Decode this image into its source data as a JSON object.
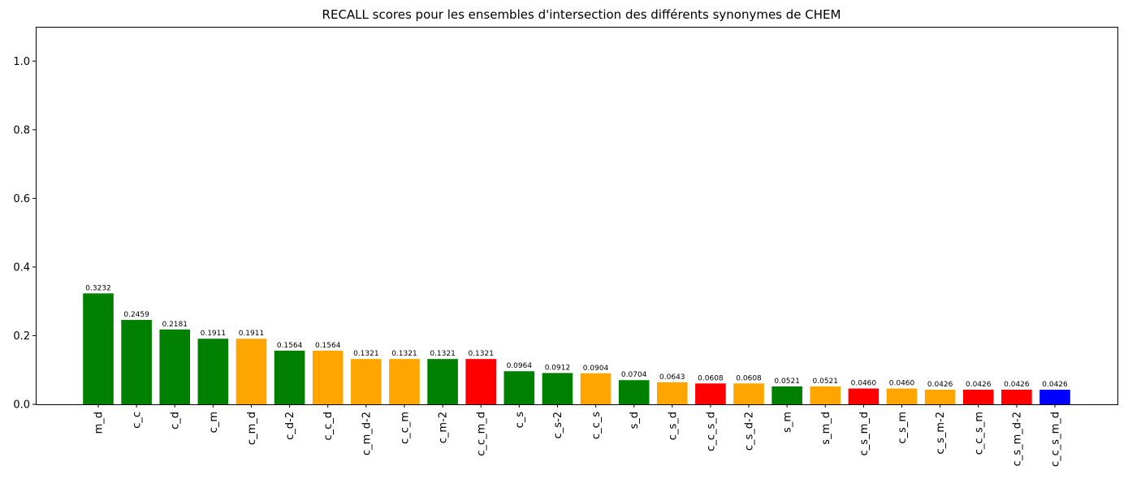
{
  "chart_data": {
    "type": "bar",
    "title": "RECALL scores pour les ensembles d'intersection des différents synonymes de CHEM",
    "xlabel": "",
    "ylabel": "",
    "ylim": [
      0,
      1.1
    ],
    "yticks": [
      "0.0",
      "0.2",
      "0.4",
      "0.6",
      "0.8",
      "1.0"
    ],
    "grid": false,
    "legend": "none",
    "categories": [
      "m_d",
      "c_c",
      "c_d",
      "c_m",
      "c_m_d",
      "c_d-2",
      "c_c_d",
      "c_m_d-2",
      "c_c_m",
      "c_m-2",
      "c_c_m_d",
      "c_s",
      "c_s-2",
      "c_c_s",
      "s_d",
      "c_s_d",
      "c_c_s_d",
      "c_s_d-2",
      "s_m",
      "s_m_d",
      "c_s_m_d",
      "c_s_m",
      "c_s_m-2",
      "c_c_s_m",
      "c_s_m_d-2",
      "c_c_s_m_d"
    ],
    "values": [
      0.3232,
      0.2459,
      0.2181,
      0.1911,
      0.1911,
      0.1564,
      0.1564,
      0.1321,
      0.1321,
      0.1321,
      0.1321,
      0.0964,
      0.0912,
      0.0904,
      0.0704,
      0.0643,
      0.0608,
      0.0608,
      0.0521,
      0.0521,
      0.046,
      0.046,
      0.0426,
      0.0426,
      0.0426,
      0.0426
    ],
    "value_labels": [
      "0.3232",
      "0.2459",
      "0.2181",
      "0.1911",
      "0.1911",
      "0.1564",
      "0.1564",
      "0.1321",
      "0.1321",
      "0.1321",
      "0.1321",
      "0.0964",
      "0.0912",
      "0.0904",
      "0.0704",
      "0.0643",
      "0.0608",
      "0.0608",
      "0.0521",
      "0.0521",
      "0.0460",
      "0.0460",
      "0.0426",
      "0.0426",
      "0.0426",
      "0.0426"
    ],
    "bar_colors": [
      "#008000",
      "#008000",
      "#008000",
      "#008000",
      "#ffa500",
      "#008000",
      "#ffa500",
      "#ffa500",
      "#ffa500",
      "#008000",
      "#ff0000",
      "#008000",
      "#008000",
      "#ffa500",
      "#008000",
      "#ffa500",
      "#ff0000",
      "#ffa500",
      "#008000",
      "#ffa500",
      "#ff0000",
      "#ffa500",
      "#ffa500",
      "#ff0000",
      "#ff0000",
      "#0000ff"
    ]
  }
}
